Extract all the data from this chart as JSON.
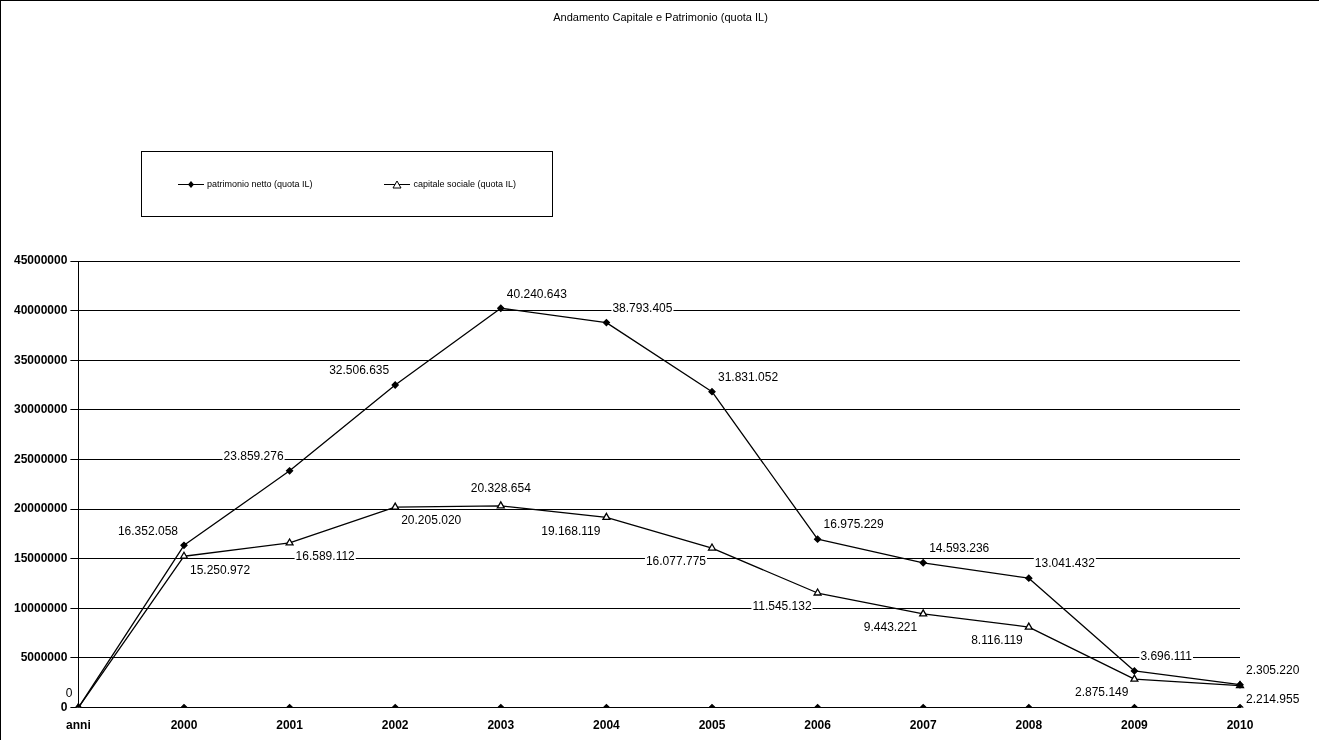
{
  "chart_data": {
    "type": "line",
    "title": "Andamento Capitale e Patrimonio (quota IL)",
    "categories": [
      "anni",
      "2000",
      "2001",
      "2002",
      "2003",
      "2004",
      "2005",
      "2006",
      "2007",
      "2008",
      "2009",
      "2010"
    ],
    "series": [
      {
        "name": "patrimonio netto (quota IL)",
        "color": "#000000",
        "marker": "diamond",
        "values": [
          0,
          16352058,
          23859276,
          32506635,
          40240643,
          38793405,
          31831052,
          16975229,
          14593236,
          13041432,
          3696111,
          2305220
        ],
        "value_labels": [
          "0",
          "16.352.058",
          "23.859.276",
          "32.506.635",
          "40.240.643",
          "38.793.405",
          "31.831.052",
          "16.975.229",
          "14.593.236",
          "13.041.432",
          "3.696.111",
          "2.305.220"
        ]
      },
      {
        "name": "capitale sociale (quota  IL)",
        "color": "#000000",
        "marker": "triangle",
        "values": [
          0,
          15250972,
          16589112,
          20205020,
          20328654,
          19168119,
          16077775,
          11545132,
          9443221,
          8116119,
          2875149,
          2214955
        ],
        "value_labels": [
          null,
          "15.250.972",
          "16.589.112",
          "20.205.020",
          "20.328.654",
          "19.168.119",
          "16.077.775",
          "11.545.132",
          "9.443.221",
          "8.116.119",
          "2.875.149",
          "2.214.955"
        ]
      },
      {
        "type": "scatter",
        "color": "#000000",
        "marker": "diamond",
        "values": [
          null,
          0,
          0,
          0,
          0,
          0,
          0,
          0,
          0,
          0,
          0,
          0
        ]
      }
    ],
    "ylim": [
      0,
      45000000
    ],
    "yticks": [
      0,
      5000000,
      10000000,
      15000000,
      20000000,
      25000000,
      30000000,
      35000000,
      40000000,
      45000000
    ],
    "grid": "y",
    "legend": "top left"
  }
}
